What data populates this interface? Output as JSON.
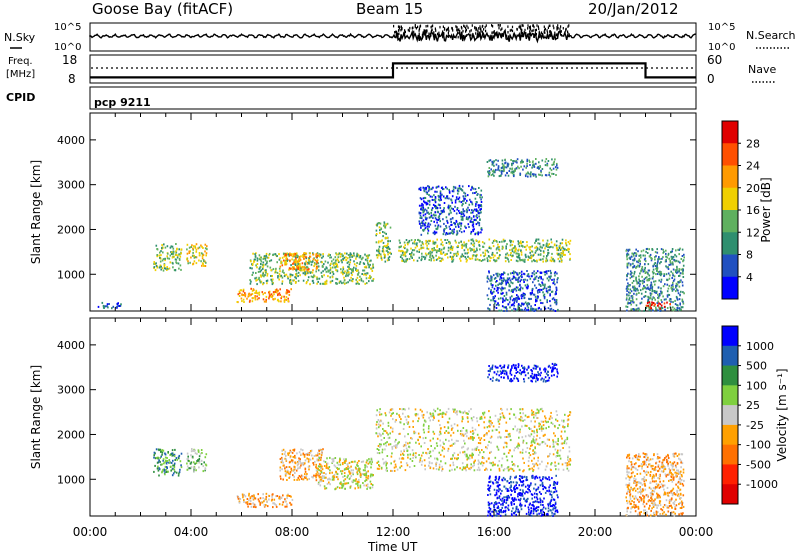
{
  "header": {
    "station": "Goose Bay (fitACF)",
    "beam": "Beam 15",
    "date": "20/Jan/2012"
  },
  "top_panels": {
    "nsky": {
      "label": "N.Sky",
      "right_label": "N.Search",
      "tick_top": "10^5",
      "tick_bottom": "10^0",
      "right_tick_top": "10^5",
      "right_tick_bottom": "10^0"
    },
    "freq": {
      "label_line1": "Freq.",
      "label_line2": "[MHz]",
      "right_label": "Nave",
      "left_ticks": [
        "18",
        "8"
      ],
      "right_ticks": [
        "60",
        "0"
      ],
      "steps": [
        {
          "start": 0,
          "end": 12,
          "value": 10
        },
        {
          "start": 12,
          "end": 22,
          "value": 15
        },
        {
          "start": 22,
          "end": 24,
          "value": 10
        }
      ]
    },
    "cpid": {
      "label": "CPID",
      "program": "pcp 9211"
    }
  },
  "x_axis": {
    "ticks": [
      "00:00",
      "04:00",
      "08:00",
      "12:00",
      "16:00",
      "20:00",
      "00:00"
    ],
    "label": "Time UT"
  },
  "chart_data": [
    {
      "type": "heatmap",
      "name": "power",
      "ylabel": "Slant Range [km]",
      "y_ticks": [
        1000,
        2000,
        3000,
        4000
      ],
      "ylim": [
        180,
        4600
      ],
      "xlim": [
        0,
        24
      ],
      "colorbar": {
        "label": "Power [dB]",
        "ticks": [
          "4",
          "8",
          "12",
          "16",
          "20",
          "24",
          "28"
        ],
        "colors": [
          "#0000ff",
          "#2050c0",
          "#2f8f6f",
          "#5fb05f",
          "#f0d000",
          "#ff9a00",
          "#ff5000",
          "#e00000"
        ]
      },
      "regions": [
        {
          "t0": 0.3,
          "t1": 1.2,
          "r0": 250,
          "r1": 400,
          "level": 1
        },
        {
          "t0": 2.5,
          "t1": 3.6,
          "r0": 1100,
          "r1": 1700,
          "level": 3
        },
        {
          "t0": 3.8,
          "t1": 4.6,
          "r0": 1200,
          "r1": 1700,
          "level": 4
        },
        {
          "t0": 5.8,
          "t1": 8.0,
          "r0": 400,
          "r1": 700,
          "level": 5
        },
        {
          "t0": 6.3,
          "t1": 11.2,
          "r0": 800,
          "r1": 1500,
          "level": 3
        },
        {
          "t0": 7.5,
          "t1": 9.0,
          "r0": 1100,
          "r1": 1500,
          "level": 5
        },
        {
          "t0": 11.3,
          "t1": 11.9,
          "r0": 1300,
          "r1": 2200,
          "level": 3
        },
        {
          "t0": 12.2,
          "t1": 19.0,
          "r0": 1300,
          "r1": 1800,
          "level": 3
        },
        {
          "t0": 13.0,
          "t1": 15.5,
          "r0": 1900,
          "r1": 3000,
          "level": 1
        },
        {
          "t0": 15.7,
          "t1": 18.5,
          "r0": 3200,
          "r1": 3600,
          "level": 2
        },
        {
          "t0": 15.7,
          "t1": 18.5,
          "r0": 200,
          "r1": 1100,
          "level": 1
        },
        {
          "t0": 21.2,
          "t1": 23.5,
          "r0": 200,
          "r1": 1600,
          "level": 2
        },
        {
          "t0": 22.0,
          "t1": 23.0,
          "r0": 250,
          "r1": 400,
          "level": 7
        }
      ]
    },
    {
      "type": "heatmap",
      "name": "velocity",
      "ylabel": "Slant Range [km]",
      "y_ticks": [
        1000,
        2000,
        3000,
        4000
      ],
      "ylim": [
        180,
        4600
      ],
      "xlim": [
        0,
        24
      ],
      "colorbar": {
        "label": "Velocity [m s⁻¹]",
        "ticks": [
          "1000",
          "500",
          "100",
          "25",
          "-25",
          "-100",
          "-500",
          "-1000"
        ],
        "colors": [
          "#0000ff",
          "#1f5fb0",
          "#2f8f3f",
          "#7fd03f",
          "#c8c8c8",
          "#ffa000",
          "#ff7000",
          "#ff2000",
          "#e00000"
        ]
      },
      "regions": [
        {
          "t0": 2.5,
          "t1": 3.6,
          "r0": 1100,
          "r1": 1700,
          "level": 2
        },
        {
          "t0": 3.8,
          "t1": 4.6,
          "r0": 1200,
          "r1": 1700,
          "level": 3
        },
        {
          "t0": 5.8,
          "t1": 8.0,
          "r0": 400,
          "r1": 700,
          "level": 5
        },
        {
          "t0": 7.5,
          "t1": 9.2,
          "r0": 1000,
          "r1": 1700,
          "level": 5
        },
        {
          "t0": 9.0,
          "t1": 11.2,
          "r0": 800,
          "r1": 1500,
          "level": 4
        },
        {
          "t0": 11.3,
          "t1": 19.0,
          "r0": 1200,
          "r1": 2600,
          "level": 4
        },
        {
          "t0": 15.7,
          "t1": 18.5,
          "r0": 3200,
          "r1": 3600,
          "level": 0
        },
        {
          "t0": 15.7,
          "t1": 18.5,
          "r0": 200,
          "r1": 1100,
          "level": 0
        },
        {
          "t0": 21.2,
          "t1": 23.5,
          "r0": 200,
          "r1": 1600,
          "level": 5
        }
      ]
    }
  ]
}
